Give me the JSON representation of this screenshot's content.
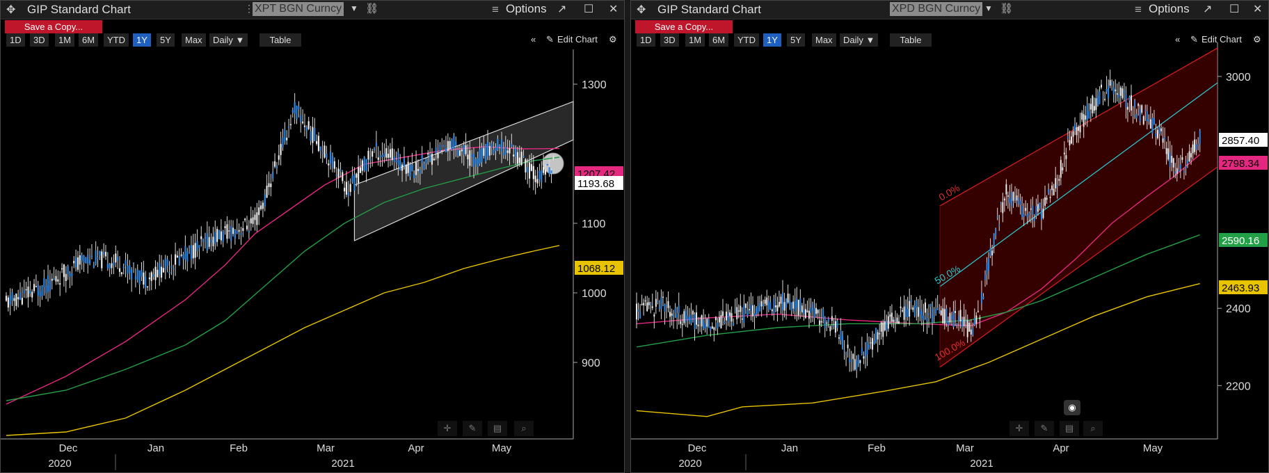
{
  "window_title": "GIP Standard Chart",
  "options_label": "Options",
  "save_copy_label": "Save a Copy...",
  "edit_chart_label": "Edit Chart",
  "ranges": [
    "1D",
    "3D",
    "1M",
    "6M",
    "YTD",
    "1Y",
    "5Y",
    "Max"
  ],
  "active_range": "1Y",
  "interval_label": "Daily ▼",
  "table_label": "Table",
  "chart_data": [
    {
      "type": "candlestick",
      "ticker": "XPT BGN Curncy",
      "x_month_labels": [
        "Dec",
        "Jan",
        "Feb",
        "Mar",
        "Apr",
        "May"
      ],
      "x_year_labels": [
        "2020",
        "2021"
      ],
      "y_ticks": [
        900,
        1000,
        1100,
        1300
      ],
      "ylim": [
        820,
        1340
      ],
      "last_price": 1193.68,
      "price_path": [
        [
          0,
          985
        ],
        [
          20,
          1010
        ],
        [
          40,
          1050
        ],
        [
          55,
          1045
        ],
        [
          70,
          1020
        ],
        [
          90,
          1055
        ],
        [
          105,
          1080
        ],
        [
          115,
          1090
        ],
        [
          125,
          1100
        ],
        [
          130,
          1135
        ],
        [
          138,
          1205
        ],
        [
          145,
          1265
        ],
        [
          152,
          1235
        ],
        [
          160,
          1205
        ],
        [
          167,
          1175
        ],
        [
          172,
          1145
        ],
        [
          178,
          1175
        ],
        [
          185,
          1205
        ],
        [
          195,
          1195
        ],
        [
          205,
          1175
        ],
        [
          215,
          1200
        ],
        [
          225,
          1215
        ],
        [
          235,
          1190
        ],
        [
          245,
          1210
        ],
        [
          255,
          1205
        ],
        [
          262,
          1180
        ],
        [
          268,
          1165
        ],
        [
          275,
          1185
        ]
      ],
      "ma_series": [
        {
          "color": "#e4287f",
          "label": "1207.42",
          "values": [
            [
              0,
              840
            ],
            [
              30,
              880
            ],
            [
              60,
              930
            ],
            [
              90,
              990
            ],
            [
              110,
              1040
            ],
            [
              125,
              1085
            ],
            [
              140,
              1115
            ],
            [
              160,
              1155
            ],
            [
              180,
              1185
            ],
            [
              200,
              1195
            ],
            [
              220,
              1205
            ],
            [
              240,
              1210
            ],
            [
              260,
              1207
            ],
            [
              278,
              1207.42
            ]
          ]
        },
        {
          "color": "#22a046",
          "label": "",
          "values": [
            [
              0,
              845
            ],
            [
              30,
              860
            ],
            [
              60,
              890
            ],
            [
              90,
              925
            ],
            [
              110,
              960
            ],
            [
              130,
              1010
            ],
            [
              150,
              1060
            ],
            [
              170,
              1100
            ],
            [
              190,
              1130
            ],
            [
              210,
              1150
            ],
            [
              230,
              1165
            ],
            [
              250,
              1180
            ],
            [
              265,
              1190
            ],
            [
              278,
              1195
            ]
          ]
        },
        {
          "color": "#e8c400",
          "label": "1068.12",
          "values": [
            [
              0,
              795
            ],
            [
              30,
              800
            ],
            [
              60,
              820
            ],
            [
              90,
              860
            ],
            [
              110,
              890
            ],
            [
              130,
              920
            ],
            [
              150,
              950
            ],
            [
              170,
              975
            ],
            [
              190,
              1000
            ],
            [
              210,
              1015
            ],
            [
              230,
              1035
            ],
            [
              250,
              1050
            ],
            [
              265,
              1060
            ],
            [
              278,
              1068.12
            ]
          ]
        }
      ],
      "price_labels": [
        {
          "text": "1207.42",
          "bg": "#e4287f",
          "fg": "#000"
        },
        {
          "text": "1193.68",
          "bg": "#fff",
          "fg": "#000"
        },
        {
          "text": "1068.12",
          "bg": "#e8c400",
          "fg": "#000"
        }
      ]
    },
    {
      "type": "candlestick",
      "ticker": "XPD BGN Curncy",
      "x_month_labels": [
        "Dec",
        "Jan",
        "Feb",
        "Mar",
        "Apr",
        "May"
      ],
      "x_year_labels": [
        "2020",
        "2021"
      ],
      "y_ticks": [
        2200,
        2400,
        3000
      ],
      "ylim": [
        2080,
        3070
      ],
      "last_price": 2857.4,
      "fib_labels": [
        "0.0%",
        "50.0%",
        "100.0%"
      ],
      "price_path": [
        [
          0,
          2390
        ],
        [
          15,
          2410
        ],
        [
          25,
          2380
        ],
        [
          40,
          2360
        ],
        [
          55,
          2380
        ],
        [
          70,
          2400
        ],
        [
          85,
          2420
        ],
        [
          95,
          2400
        ],
        [
          105,
          2380
        ],
        [
          115,
          2340
        ],
        [
          120,
          2290
        ],
        [
          125,
          2260
        ],
        [
          135,
          2320
        ],
        [
          145,
          2370
        ],
        [
          155,
          2400
        ],
        [
          165,
          2390
        ],
        [
          175,
          2380
        ],
        [
          185,
          2370
        ],
        [
          190,
          2330
        ],
        [
          195,
          2390
        ],
        [
          200,
          2520
        ],
        [
          205,
          2620
        ],
        [
          210,
          2700
        ],
        [
          215,
          2680
        ],
        [
          222,
          2640
        ],
        [
          230,
          2650
        ],
        [
          238,
          2720
        ],
        [
          245,
          2820
        ],
        [
          252,
          2880
        ],
        [
          258,
          2920
        ],
        [
          265,
          2960
        ],
        [
          272,
          2980
        ],
        [
          278,
          2940
        ],
        [
          285,
          2910
        ],
        [
          292,
          2880
        ],
        [
          298,
          2850
        ],
        [
          304,
          2780
        ],
        [
          309,
          2760
        ],
        [
          314,
          2800
        ],
        [
          320,
          2850
        ]
      ],
      "ma_series": [
        {
          "color": "#e4287f",
          "label": "2798.34",
          "values": [
            [
              0,
              2360
            ],
            [
              40,
              2375
            ],
            [
              80,
              2385
            ],
            [
              120,
              2370
            ],
            [
              160,
              2360
            ],
            [
              190,
              2355
            ],
            [
              210,
              2390
            ],
            [
              230,
              2450
            ],
            [
              250,
              2530
            ],
            [
              270,
              2620
            ],
            [
              290,
              2690
            ],
            [
              305,
              2740
            ],
            [
              320,
              2798.34
            ]
          ]
        },
        {
          "color": "#22a046",
          "label": "2590.16",
          "values": [
            [
              0,
              2300
            ],
            [
              40,
              2330
            ],
            [
              80,
              2350
            ],
            [
              120,
              2360
            ],
            [
              160,
              2360
            ],
            [
              190,
              2370
            ],
            [
              210,
              2390
            ],
            [
              230,
              2420
            ],
            [
              250,
              2460
            ],
            [
              270,
              2500
            ],
            [
              290,
              2540
            ],
            [
              305,
              2565
            ],
            [
              320,
              2590.16
            ]
          ]
        },
        {
          "color": "#e8c400",
          "label": "2463.93",
          "values": [
            [
              0,
              2135
            ],
            [
              40,
              2120
            ],
            [
              60,
              2145
            ],
            [
              100,
              2155
            ],
            [
              140,
              2185
            ],
            [
              170,
              2210
            ],
            [
              200,
              2260
            ],
            [
              230,
              2320
            ],
            [
              260,
              2380
            ],
            [
              290,
              2430
            ],
            [
              320,
              2463.93
            ]
          ]
        }
      ],
      "price_labels": [
        {
          "text": "2857.40",
          "bg": "#fff",
          "fg": "#000"
        },
        {
          "text": "2798.34",
          "bg": "#e4287f",
          "fg": "#000"
        },
        {
          "text": "2590.16",
          "bg": "#22a046",
          "fg": "#fff"
        },
        {
          "text": "2463.93",
          "bg": "#e8c400",
          "fg": "#000"
        }
      ]
    }
  ]
}
